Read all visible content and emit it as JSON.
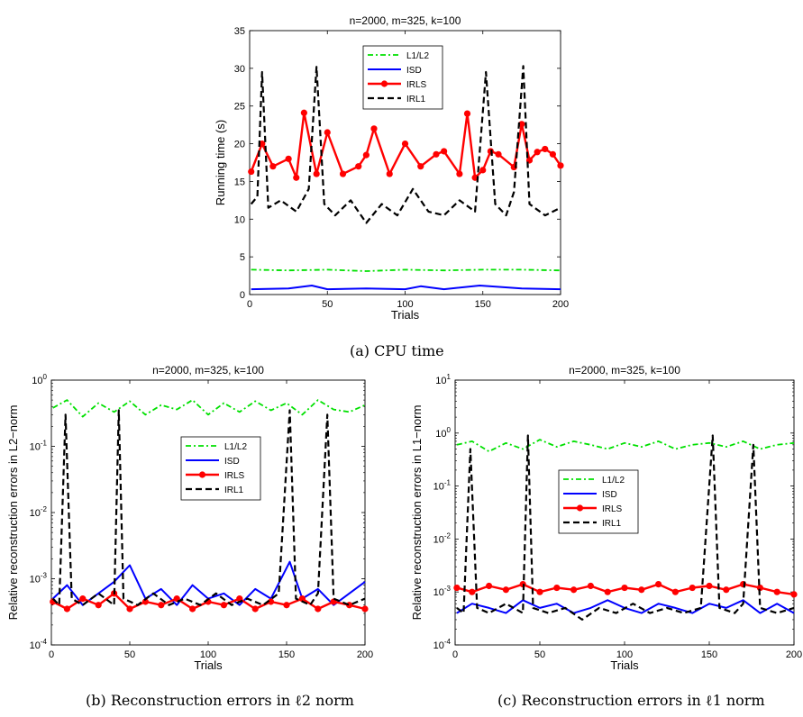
{
  "captions": {
    "a": "(a) CPU time",
    "b": "(b) Reconstruction errors in ℓ2 norm",
    "c": "(c) Reconstruction errors in ℓ1 norm"
  },
  "legend_labels": [
    "L1/L2",
    "ISD",
    "IRLS",
    "IRL1"
  ],
  "colors": {
    "L1/L2": "#00e000",
    "ISD": "#0000ff",
    "IRLS": "#ff0000",
    "IRL1": "#000000"
  },
  "chart_data": [
    {
      "id": "a",
      "type": "line",
      "title": "n=2000, m=325, k=100",
      "xlabel": "Trials",
      "ylabel": "Running time (s)",
      "xlim": [
        0,
        200
      ],
      "ylim": [
        0,
        35
      ],
      "yscale": "linear",
      "xticks": [
        "0",
        "50",
        "100",
        "150",
        "200"
      ],
      "yticks": [
        "0",
        "5",
        "10",
        "15",
        "20",
        "25",
        "30",
        "35"
      ],
      "legend_position": "top-center",
      "series": [
        {
          "name": "L1/L2",
          "x": [
            1,
            25,
            50,
            75,
            100,
            125,
            150,
            175,
            200
          ],
          "values": [
            3.3,
            3.2,
            3.3,
            3.1,
            3.3,
            3.2,
            3.3,
            3.3,
            3.2
          ]
        },
        {
          "name": "ISD",
          "x": [
            1,
            25,
            40,
            50,
            75,
            100,
            110,
            125,
            148,
            175,
            200
          ],
          "values": [
            0.7,
            0.8,
            1.2,
            0.7,
            0.8,
            0.7,
            1.1,
            0.7,
            1.2,
            0.8,
            0.7
          ]
        },
        {
          "name": "IRLS",
          "x": [
            1,
            8,
            15,
            25,
            30,
            35,
            43,
            50,
            60,
            70,
            75,
            80,
            90,
            100,
            110,
            120,
            125,
            135,
            140,
            145,
            150,
            155,
            160,
            170,
            175,
            180,
            185,
            190,
            195,
            200
          ],
          "values": [
            16.3,
            20,
            17,
            18,
            15.5,
            24.1,
            16,
            21.5,
            16,
            17,
            18.5,
            22,
            16,
            20,
            17,
            18.6,
            19,
            16,
            24,
            15.5,
            16.5,
            19,
            18.6,
            16.9,
            22.6,
            17.8,
            18.9,
            19.3,
            18.6,
            17.1
          ]
        },
        {
          "name": "IRL1",
          "x": [
            1,
            5,
            8,
            12,
            20,
            30,
            38,
            43,
            48,
            55,
            65,
            75,
            85,
            95,
            105,
            115,
            125,
            135,
            145,
            152,
            158,
            165,
            170,
            176,
            180,
            190,
            200
          ],
          "values": [
            12,
            13,
            29.5,
            11.5,
            12.5,
            11,
            14,
            30.2,
            12,
            10.5,
            12.5,
            9.5,
            12,
            10.5,
            14,
            11,
            10.5,
            12.5,
            11,
            29.5,
            12,
            10.5,
            13.6,
            30.3,
            12,
            10.5,
            11.5
          ]
        }
      ]
    },
    {
      "id": "b",
      "type": "line",
      "title": "n=2000, m=325, k=100",
      "xlabel": "Trials",
      "ylabel": "Relative reconstruction errors in L2−norm",
      "xlim": [
        0,
        200
      ],
      "ylim": [
        0.0001,
        1
      ],
      "yscale": "log",
      "xticks": [
        "0",
        "50",
        "100",
        "150",
        "200"
      ],
      "yticks": [
        "10-4",
        "10-3",
        "10-2",
        "10-1",
        "100"
      ],
      "legend_position": "center",
      "series": [
        {
          "name": "L1/L2",
          "x": [
            1,
            10,
            20,
            30,
            40,
            50,
            60,
            70,
            80,
            90,
            100,
            110,
            120,
            130,
            140,
            150,
            160,
            170,
            180,
            190,
            200
          ],
          "values": [
            0.38,
            0.5,
            0.28,
            0.45,
            0.33,
            0.48,
            0.3,
            0.42,
            0.36,
            0.5,
            0.3,
            0.45,
            0.33,
            0.48,
            0.35,
            0.45,
            0.3,
            0.5,
            0.36,
            0.33,
            0.42
          ]
        },
        {
          "name": "ISD",
          "x": [
            1,
            10,
            20,
            30,
            40,
            50,
            60,
            70,
            80,
            90,
            100,
            110,
            120,
            130,
            140,
            152,
            160,
            170,
            180,
            190,
            200
          ],
          "values": [
            0.0005,
            0.0008,
            0.0004,
            0.0006,
            0.0009,
            0.0016,
            0.0005,
            0.0007,
            0.0004,
            0.0008,
            0.0005,
            0.0006,
            0.0004,
            0.0007,
            0.0005,
            0.0018,
            0.0005,
            0.0007,
            0.0004,
            0.0006,
            0.0009
          ]
        },
        {
          "name": "IRLS",
          "x": [
            1,
            10,
            20,
            30,
            40,
            50,
            60,
            70,
            80,
            90,
            100,
            110,
            120,
            130,
            140,
            150,
            160,
            170,
            180,
            190,
            200
          ],
          "values": [
            0.00045,
            0.00035,
            0.0005,
            0.0004,
            0.0006,
            0.00035,
            0.00045,
            0.0004,
            0.0005,
            0.00035,
            0.00045,
            0.0004,
            0.0005,
            0.00035,
            0.00045,
            0.0004,
            0.0005,
            0.00035,
            0.00045,
            0.0004,
            0.00035
          ]
        },
        {
          "name": "IRL1",
          "x": [
            1,
            5,
            9,
            13,
            20,
            30,
            40,
            43,
            46,
            55,
            65,
            75,
            85,
            95,
            105,
            115,
            125,
            135,
            145,
            152,
            156,
            165,
            170,
            176,
            180,
            190,
            200
          ],
          "values": [
            0.0005,
            0.0004,
            0.3,
            0.0005,
            0.0004,
            0.0006,
            0.0004,
            0.35,
            0.0005,
            0.0004,
            0.0006,
            0.0004,
            0.0005,
            0.0004,
            0.0006,
            0.0004,
            0.0005,
            0.0004,
            0.0006,
            0.35,
            0.0005,
            0.0004,
            0.0006,
            0.3,
            0.0005,
            0.0004,
            0.0005
          ]
        }
      ]
    },
    {
      "id": "c",
      "type": "line",
      "title": "n=2000, m=325, k=100",
      "xlabel": "Trials",
      "ylabel": "Relative reconstruction errors in L1−norm",
      "xlim": [
        0,
        200
      ],
      "ylim": [
        0.0001,
        10
      ],
      "yscale": "log",
      "xticks": [
        "0",
        "50",
        "100",
        "150",
        "200"
      ],
      "yticks": [
        "10-4",
        "10-3",
        "10-2",
        "10-1",
        "100",
        "101"
      ],
      "legend_position": "center-left",
      "series": [
        {
          "name": "L1/L2",
          "x": [
            1,
            10,
            20,
            30,
            40,
            50,
            60,
            70,
            80,
            90,
            100,
            110,
            120,
            130,
            140,
            150,
            160,
            170,
            180,
            190,
            200
          ],
          "values": [
            0.6,
            0.7,
            0.45,
            0.65,
            0.5,
            0.75,
            0.55,
            0.7,
            0.6,
            0.5,
            0.65,
            0.55,
            0.7,
            0.5,
            0.6,
            0.65,
            0.55,
            0.7,
            0.5,
            0.6,
            0.65
          ]
        },
        {
          "name": "ISD",
          "x": [
            1,
            10,
            20,
            30,
            40,
            50,
            60,
            70,
            80,
            90,
            100,
            110,
            120,
            130,
            140,
            150,
            160,
            170,
            180,
            190,
            200
          ],
          "values": [
            0.0004,
            0.0006,
            0.0005,
            0.0004,
            0.0007,
            0.0005,
            0.0006,
            0.0004,
            0.0005,
            0.0007,
            0.0005,
            0.0004,
            0.0006,
            0.0005,
            0.0004,
            0.0006,
            0.0005,
            0.0007,
            0.0004,
            0.0006,
            0.0004
          ]
        },
        {
          "name": "IRLS",
          "x": [
            1,
            10,
            20,
            30,
            40,
            50,
            60,
            70,
            80,
            90,
            100,
            110,
            120,
            130,
            140,
            150,
            160,
            170,
            180,
            190,
            200
          ],
          "values": [
            0.0012,
            0.001,
            0.0013,
            0.0011,
            0.0014,
            0.001,
            0.0012,
            0.0011,
            0.0013,
            0.001,
            0.0012,
            0.0011,
            0.0014,
            0.001,
            0.0012,
            0.0013,
            0.0011,
            0.0014,
            0.0012,
            0.001,
            0.0009
          ]
        },
        {
          "name": "IRL1",
          "x": [
            1,
            5,
            9,
            13,
            20,
            30,
            40,
            43,
            46,
            55,
            65,
            75,
            85,
            95,
            105,
            115,
            125,
            135,
            145,
            152,
            156,
            165,
            170,
            176,
            180,
            190,
            200
          ],
          "values": [
            0.0005,
            0.0004,
            0.5,
            0.0005,
            0.0004,
            0.0006,
            0.0004,
            0.9,
            0.0005,
            0.0004,
            0.0005,
            0.0003,
            0.0005,
            0.0004,
            0.0006,
            0.0004,
            0.0005,
            0.0004,
            0.0005,
            0.9,
            0.0005,
            0.0004,
            0.0006,
            0.6,
            0.0005,
            0.0004,
            0.0005
          ]
        }
      ]
    }
  ]
}
